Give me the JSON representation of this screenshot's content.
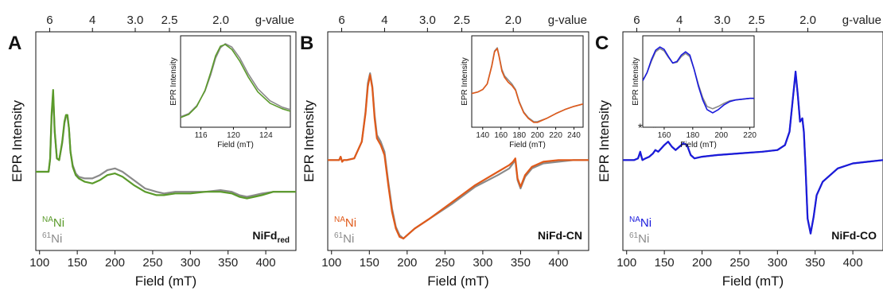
{
  "chart_data": [
    {
      "type": "line",
      "panel_letter": "A",
      "xlabel": "Field (mT)",
      "ylabel": "EPR Intensity",
      "top_axis_label": "g-value",
      "sample_label": "NiFd",
      "sample_label_sub": "red",
      "xlim": [
        95,
        440
      ],
      "ylim": [
        0,
        1
      ],
      "x_ticks": [
        100,
        150,
        200,
        250,
        300,
        350,
        400
      ],
      "g_ticks": [
        6,
        4,
        3.0,
        2.5,
        2.0
      ],
      "g_tick_labels": [
        "6",
        "4",
        "3.0",
        "2.5",
        "2.0"
      ],
      "legend": [
        {
          "mass": "NA",
          "element": "Ni",
          "color": "#5a9a2a"
        },
        {
          "mass": "61",
          "element": "Ni",
          "color": "#8a8a8a"
        }
      ],
      "series": [
        {
          "name": "NANi",
          "color": "#5a9a2a",
          "x": [
            95,
            112,
            114,
            116,
            118,
            120,
            123,
            126,
            130,
            133,
            135,
            137,
            139,
            141,
            144,
            148,
            152,
            160,
            170,
            180,
            190,
            200,
            210,
            225,
            240,
            255,
            265,
            280,
            300,
            320,
            340,
            355,
            365,
            375,
            385,
            395,
            410,
            425,
            440
          ],
          "y": [
            0.4,
            0.4,
            0.48,
            0.75,
            0.89,
            0.65,
            0.48,
            0.47,
            0.58,
            0.7,
            0.74,
            0.74,
            0.66,
            0.52,
            0.43,
            0.38,
            0.36,
            0.34,
            0.33,
            0.35,
            0.38,
            0.39,
            0.37,
            0.32,
            0.28,
            0.26,
            0.26,
            0.27,
            0.27,
            0.28,
            0.28,
            0.27,
            0.25,
            0.24,
            0.25,
            0.26,
            0.28,
            0.28,
            0.28
          ]
        },
        {
          "name": "61Ni",
          "color": "#8a8a8a",
          "x": [
            95,
            112,
            114,
            116,
            118,
            120,
            123,
            126,
            130,
            133,
            135,
            137,
            139,
            141,
            144,
            148,
            152,
            160,
            170,
            180,
            190,
            200,
            210,
            225,
            240,
            255,
            265,
            280,
            300,
            320,
            340,
            355,
            365,
            375,
            385,
            395,
            410,
            425,
            440
          ],
          "y": [
            0.4,
            0.4,
            0.47,
            0.73,
            0.87,
            0.64,
            0.48,
            0.47,
            0.57,
            0.69,
            0.73,
            0.73,
            0.66,
            0.52,
            0.44,
            0.39,
            0.37,
            0.36,
            0.36,
            0.38,
            0.41,
            0.42,
            0.4,
            0.35,
            0.3,
            0.28,
            0.27,
            0.28,
            0.28,
            0.28,
            0.29,
            0.28,
            0.26,
            0.25,
            0.26,
            0.27,
            0.28,
            0.28,
            0.28
          ]
        }
      ],
      "inset": {
        "xlabel": "Field (mT)",
        "ylabel": "EPR Intensity",
        "xlim": [
          113.5,
          127
        ],
        "ylim": [
          0,
          1
        ],
        "x_ticks": [
          116,
          120,
          124
        ],
        "series": [
          {
            "color": "#5a9a2a",
            "x": [
              113.5,
              114.5,
              115.5,
              116.5,
              117.2,
              117.8,
              118.4,
              119,
              119.8,
              120.8,
              121.8,
              123,
              124.5,
              126,
              127
            ],
            "y": [
              0.06,
              0.1,
              0.2,
              0.4,
              0.62,
              0.83,
              0.95,
              0.97,
              0.91,
              0.76,
              0.57,
              0.38,
              0.24,
              0.17,
              0.14
            ]
          },
          {
            "color": "#8a8a8a",
            "x": [
              113.5,
              114.5,
              115.5,
              116.5,
              117.2,
              117.8,
              118.4,
              119,
              119.8,
              120.8,
              121.8,
              123,
              124.5,
              126,
              127
            ],
            "y": [
              0.07,
              0.11,
              0.21,
              0.39,
              0.59,
              0.8,
              0.93,
              0.98,
              0.94,
              0.8,
              0.61,
              0.42,
              0.27,
              0.19,
              0.16
            ]
          }
        ]
      }
    },
    {
      "type": "line",
      "panel_letter": "B",
      "xlabel": "Field (mT)",
      "ylabel": "EPR Intensity",
      "top_axis_label": "g-value",
      "sample_label": "NiFd-CN",
      "sample_label_sub": "",
      "xlim": [
        95,
        440
      ],
      "ylim": [
        0,
        1
      ],
      "x_ticks": [
        100,
        150,
        200,
        250,
        300,
        350,
        400
      ],
      "g_ticks": [
        6,
        4,
        3.0,
        2.5,
        2.0
      ],
      "g_tick_labels": [
        "6",
        "4",
        "3.0",
        "2.5",
        "2.0"
      ],
      "legend": [
        {
          "mass": "NA",
          "element": "Ni",
          "color": "#e05a1a"
        },
        {
          "mass": "61",
          "element": "Ni",
          "color": "#8a8a8a"
        }
      ],
      "series": [
        {
          "name": "NANi",
          "color": "#e05a1a",
          "x": [
            95,
            110,
            112,
            114,
            116,
            120,
            130,
            140,
            145,
            148,
            151,
            154,
            157,
            160,
            165,
            170,
            175,
            180,
            185,
            190,
            195,
            200,
            210,
            230,
            260,
            290,
            320,
            335,
            340,
            343,
            346,
            350,
            356,
            365,
            380,
            400,
            420,
            440
          ],
          "y": [
            0.47,
            0.47,
            0.49,
            0.46,
            0.47,
            0.47,
            0.48,
            0.58,
            0.75,
            0.91,
            0.98,
            0.9,
            0.72,
            0.6,
            0.56,
            0.5,
            0.32,
            0.16,
            0.06,
            0.01,
            0.0,
            0.02,
            0.06,
            0.12,
            0.22,
            0.32,
            0.4,
            0.44,
            0.46,
            0.48,
            0.36,
            0.31,
            0.38,
            0.43,
            0.46,
            0.47,
            0.47,
            0.47
          ]
        },
        {
          "name": "61Ni",
          "color": "#8a8a8a",
          "x": [
            95,
            110,
            112,
            114,
            116,
            120,
            130,
            140,
            145,
            148,
            151,
            154,
            157,
            160,
            165,
            170,
            175,
            180,
            185,
            190,
            195,
            200,
            210,
            230,
            260,
            290,
            320,
            335,
            340,
            343,
            346,
            350,
            356,
            365,
            380,
            400,
            420,
            440
          ],
          "y": [
            0.47,
            0.47,
            0.49,
            0.46,
            0.47,
            0.47,
            0.48,
            0.58,
            0.76,
            0.93,
            0.99,
            0.91,
            0.74,
            0.62,
            0.58,
            0.52,
            0.34,
            0.18,
            0.07,
            0.02,
            0.0,
            0.02,
            0.06,
            0.12,
            0.21,
            0.31,
            0.38,
            0.42,
            0.45,
            0.47,
            0.35,
            0.3,
            0.37,
            0.42,
            0.45,
            0.46,
            0.47,
            0.47
          ]
        }
      ],
      "inset": {
        "xlabel": "Field (mT)",
        "ylabel": "EPR Intensity",
        "xlim": [
          128,
          250
        ],
        "ylim": [
          0,
          1
        ],
        "x_ticks": [
          140,
          160,
          180,
          200,
          220,
          240
        ],
        "series": [
          {
            "color": "#e05a1a",
            "x": [
              128,
              135,
              140,
              145,
              150,
              153,
              156,
              158,
              161,
              164,
              168,
              172,
              176,
              180,
              185,
              190,
              196,
              200,
              210,
              220,
              230,
              240,
              250
            ],
            "y": [
              0.36,
              0.38,
              0.41,
              0.48,
              0.7,
              0.88,
              0.92,
              0.82,
              0.64,
              0.56,
              0.5,
              0.46,
              0.4,
              0.25,
              0.12,
              0.05,
              0.0,
              0.0,
              0.05,
              0.11,
              0.16,
              0.2,
              0.23
            ]
          },
          {
            "color": "#8a8a8a",
            "x": [
              128,
              135,
              140,
              145,
              150,
              153,
              156,
              158,
              161,
              164,
              168,
              172,
              176,
              180,
              185,
              190,
              196,
              200,
              210,
              220,
              230,
              240,
              250
            ],
            "y": [
              0.36,
              0.38,
              0.41,
              0.48,
              0.71,
              0.89,
              0.93,
              0.83,
              0.66,
              0.58,
              0.53,
              0.48,
              0.41,
              0.26,
              0.13,
              0.06,
              0.01,
              0.01,
              0.05,
              0.11,
              0.16,
              0.2,
              0.23
            ]
          }
        ]
      }
    },
    {
      "type": "line",
      "panel_letter": "C",
      "xlabel": "Field (mT)",
      "ylabel": "EPR Intensity",
      "top_axis_label": "g-value",
      "sample_label": "NiFd-CO",
      "sample_label_sub": "",
      "xlim": [
        95,
        440
      ],
      "ylim": [
        0,
        1
      ],
      "x_ticks": [
        100,
        150,
        200,
        250,
        300,
        350,
        400
      ],
      "g_ticks": [
        6,
        4,
        3.0,
        2.5,
        2.0
      ],
      "g_tick_labels": [
        "6",
        "4",
        "3.0",
        "2.5",
        "2.0"
      ],
      "legend": [
        {
          "mass": "NA",
          "element": "Ni",
          "color": "#1a1adc"
        },
        {
          "mass": "61",
          "element": "Ni",
          "color": "#8a8a8a"
        }
      ],
      "annotations": [
        {
          "text": "*",
          "x": 118
        },
        {
          "text": "*",
          "x": 137
        }
      ],
      "series": [
        {
          "name": "NANi",
          "color": "#1a1adc",
          "x": [
            95,
            110,
            115,
            118,
            121,
            125,
            130,
            135,
            138,
            142,
            146,
            150,
            155,
            160,
            165,
            170,
            175,
            180,
            185,
            190,
            200,
            220,
            250,
            280,
            300,
            310,
            316,
            320,
            324,
            327,
            330,
            333,
            335,
            337,
            340,
            344,
            348,
            352,
            360,
            380,
            400,
            420,
            440
          ],
          "y": [
            0.47,
            0.47,
            0.48,
            0.52,
            0.47,
            0.48,
            0.49,
            0.51,
            0.53,
            0.52,
            0.54,
            0.56,
            0.58,
            0.55,
            0.53,
            0.55,
            0.57,
            0.56,
            0.5,
            0.48,
            0.49,
            0.5,
            0.51,
            0.52,
            0.53,
            0.56,
            0.64,
            0.82,
            1.0,
            0.86,
            0.7,
            0.72,
            0.64,
            0.45,
            0.12,
            0.03,
            0.13,
            0.26,
            0.34,
            0.42,
            0.45,
            0.46,
            0.47
          ]
        },
        {
          "name": "61Ni",
          "color": "#8a8a8a",
          "x": [
            95,
            110,
            115,
            118,
            121,
            125,
            130,
            135,
            138,
            142,
            146,
            150,
            155,
            160,
            165,
            170,
            175,
            180,
            185,
            190,
            200,
            220,
            250,
            280,
            300,
            310,
            316,
            320,
            324,
            327,
            330,
            333,
            335,
            337,
            340,
            344,
            348,
            352,
            360,
            380,
            400,
            420,
            440
          ],
          "y": [
            0.47,
            0.47,
            0.48,
            0.51,
            0.47,
            0.48,
            0.49,
            0.51,
            0.53,
            0.52,
            0.54,
            0.56,
            0.58,
            0.55,
            0.53,
            0.55,
            0.57,
            0.56,
            0.5,
            0.48,
            0.49,
            0.5,
            0.51,
            0.52,
            0.53,
            0.56,
            0.64,
            0.82,
            0.99,
            0.86,
            0.7,
            0.72,
            0.64,
            0.45,
            0.12,
            0.03,
            0.13,
            0.26,
            0.34,
            0.42,
            0.45,
            0.46,
            0.47
          ]
        }
      ],
      "inset": {
        "xlabel": "Field (mT)",
        "ylabel": "EPR Intensity",
        "xlim": [
          145,
          223
        ],
        "ylim": [
          0,
          1
        ],
        "x_ticks": [
          160,
          180,
          200,
          220
        ],
        "series": [
          {
            "color": "#1a1adc",
            "x": [
              145,
              148,
              151,
              154,
              157,
              160,
              163,
              166,
              169,
              172,
              175,
              178,
              181,
              184,
              187,
              190,
              194,
              198,
              202,
              206,
              210,
              215,
              220,
              223
            ],
            "y": [
              0.52,
              0.62,
              0.78,
              0.9,
              0.94,
              0.91,
              0.82,
              0.74,
              0.76,
              0.84,
              0.88,
              0.84,
              0.66,
              0.45,
              0.28,
              0.16,
              0.12,
              0.16,
              0.22,
              0.26,
              0.28,
              0.29,
              0.3,
              0.3
            ]
          },
          {
            "color": "#8a8a8a",
            "x": [
              145,
              148,
              151,
              154,
              157,
              160,
              163,
              166,
              169,
              172,
              175,
              178,
              181,
              184,
              187,
              190,
              194,
              198,
              202,
              206,
              210,
              215,
              220,
              223
            ],
            "y": [
              0.52,
              0.62,
              0.76,
              0.88,
              0.92,
              0.89,
              0.81,
              0.74,
              0.75,
              0.82,
              0.86,
              0.82,
              0.66,
              0.47,
              0.31,
              0.2,
              0.17,
              0.2,
              0.24,
              0.27,
              0.28,
              0.29,
              0.3,
              0.3
            ]
          }
        ]
      }
    }
  ]
}
